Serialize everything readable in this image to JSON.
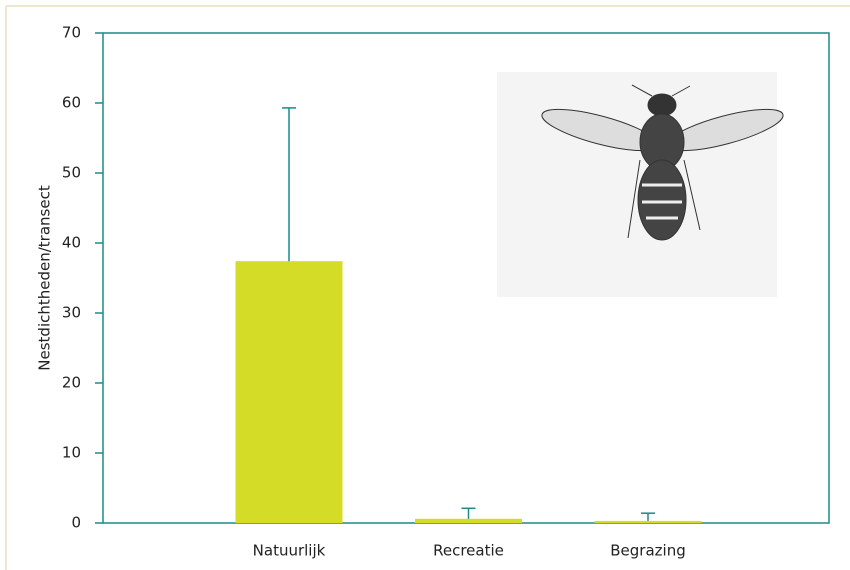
{
  "chart_data": {
    "type": "bar",
    "y_label": "Nestdichtheden/transect",
    "categories": [
      "Natuurlijk",
      "Recreatie",
      "Begrazing"
    ],
    "values": [
      37.4,
      0.6,
      0.3
    ],
    "errors": [
      21.9,
      1.5,
      1.1
    ],
    "color": "#d4dc28",
    "ylim": [
      0,
      70
    ],
    "yticks": [
      0,
      10,
      20,
      30,
      40,
      50,
      60,
      70
    ]
  }
}
